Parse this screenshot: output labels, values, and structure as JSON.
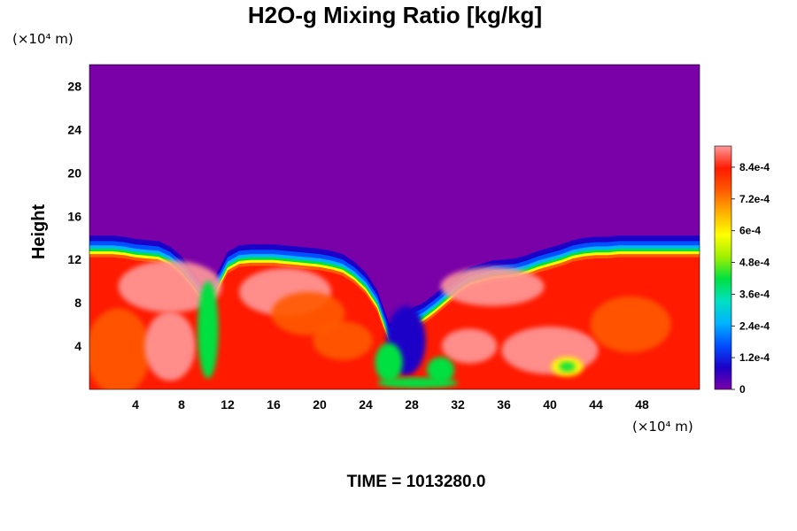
{
  "chart_data": {
    "type": "heatmap",
    "title": "H2O-g Mixing Ratio [kg/kg]",
    "xlabel": "",
    "ylabel": "Height",
    "x_unit": "(×10⁴ m)",
    "y_unit": "(×10⁴ m)",
    "xlim": [
      0,
      53
    ],
    "ylim": [
      0,
      30
    ],
    "x_ticks": [
      4,
      8,
      12,
      16,
      20,
      24,
      28,
      32,
      36,
      40,
      44,
      48
    ],
    "x_tick_labels": [
      "4",
      "8",
      "12",
      "16",
      "20",
      "24",
      "28",
      "32",
      "36",
      "40",
      "44",
      "48"
    ],
    "y_ticks": [
      4,
      8,
      12,
      16,
      20,
      24,
      28
    ],
    "y_tick_labels": [
      "4",
      "8",
      "12",
      "16",
      "20",
      "24",
      "28"
    ],
    "colorbar": {
      "min": 0,
      "max": 0.00092,
      "ticks": [
        0,
        0.00012,
        0.00024,
        0.00036,
        0.00048,
        0.0006,
        0.00072,
        0.00084
      ],
      "tick_labels": [
        "0",
        "1.2e-4",
        "2.4e-4",
        "3.6e-4",
        "4.8e-4",
        "6e-4",
        "7.2e-4",
        "8.4e-4"
      ],
      "colors": [
        "#7a00a8",
        "#1c00c8",
        "#0050ff",
        "#00b4ff",
        "#00e0c0",
        "#00e040",
        "#a0f000",
        "#ffff00",
        "#ffb000",
        "#ff5a00",
        "#ff1a00",
        "#ff9a9a"
      ]
    },
    "boundary_height": [
      14.2,
      14.2,
      14.2,
      14.1,
      13.9,
      13.8,
      13.7,
      13.2,
      12.3,
      11.0,
      9.6,
      10.6,
      12.7,
      13.3,
      13.4,
      13.4,
      13.4,
      13.3,
      13.2,
      13.1,
      13.0,
      12.8,
      12.5,
      11.8,
      10.8,
      9.2,
      6.2,
      5.8,
      7.5,
      8.0,
      8.8,
      9.7,
      10.6,
      11.3,
      11.6,
      11.9,
      12.0,
      12.1,
      12.4,
      12.8,
      13.1,
      13.4,
      13.8,
      14.0,
      14.1,
      14.1,
      14.2,
      14.2,
      14.2,
      14.2,
      14.2,
      14.2,
      14.2,
      14.2
    ],
    "boundary_x": [
      0,
      1,
      2,
      3,
      4,
      5,
      6,
      7,
      8,
      9,
      10,
      11,
      12,
      13,
      14,
      15,
      16,
      17,
      18,
      19,
      20,
      21,
      22,
      23,
      24,
      25,
      26,
      27,
      28,
      29,
      30,
      31,
      32,
      33,
      34,
      35,
      36,
      37,
      38,
      39,
      40,
      41,
      42,
      43,
      44,
      45,
      46,
      47,
      48,
      49,
      50,
      51,
      52,
      53
    ]
  },
  "time_label": "TIME = 1013280.0"
}
